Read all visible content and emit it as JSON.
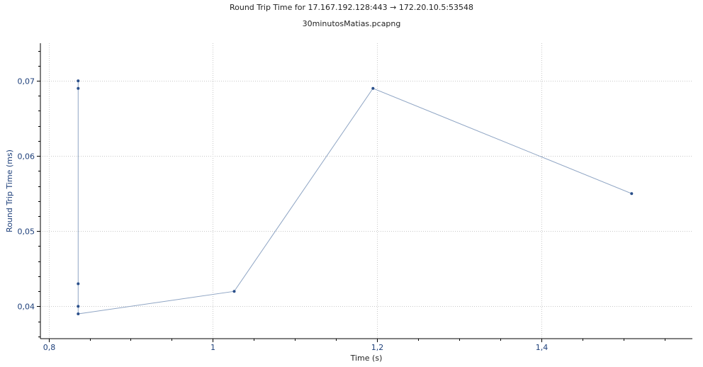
{
  "chart_data": {
    "type": "line",
    "title": "Round Trip Time for  17.167.192.128:443 → 172.20.10.5:53548",
    "subtitle": "30minutosMatias.pcapng",
    "xlabel": "Time (s)",
    "ylabel": "Round Trip Time (ms)",
    "xlim": [
      0.79,
      1.584
    ],
    "ylim": [
      0.0357,
      0.075
    ],
    "xticks": [
      {
        "value": 0.8,
        "label": "0,8"
      },
      {
        "value": 1.0,
        "label": "1"
      },
      {
        "value": 1.2,
        "label": "1,2"
      },
      {
        "value": 1.4,
        "label": "1,4"
      }
    ],
    "yticks": [
      {
        "value": 0.04,
        "label": "0,04"
      },
      {
        "value": 0.05,
        "label": "0,05"
      },
      {
        "value": 0.06,
        "label": "0,06"
      },
      {
        "value": 0.07,
        "label": "0,07"
      }
    ],
    "grid": true,
    "series": [
      {
        "x": [
          0.836,
          0.836,
          0.836,
          0.836,
          0.836,
          1.026,
          1.195,
          1.51
        ],
        "y": [
          0.07,
          0.069,
          0.043,
          0.04,
          0.039,
          0.042,
          0.069,
          0.055
        ]
      }
    ],
    "colors": {
      "line": "#8fa5c4",
      "marker": "#2a4f8a",
      "axis_text": "#1d3f7a",
      "grid": "#c8c8c8"
    }
  }
}
